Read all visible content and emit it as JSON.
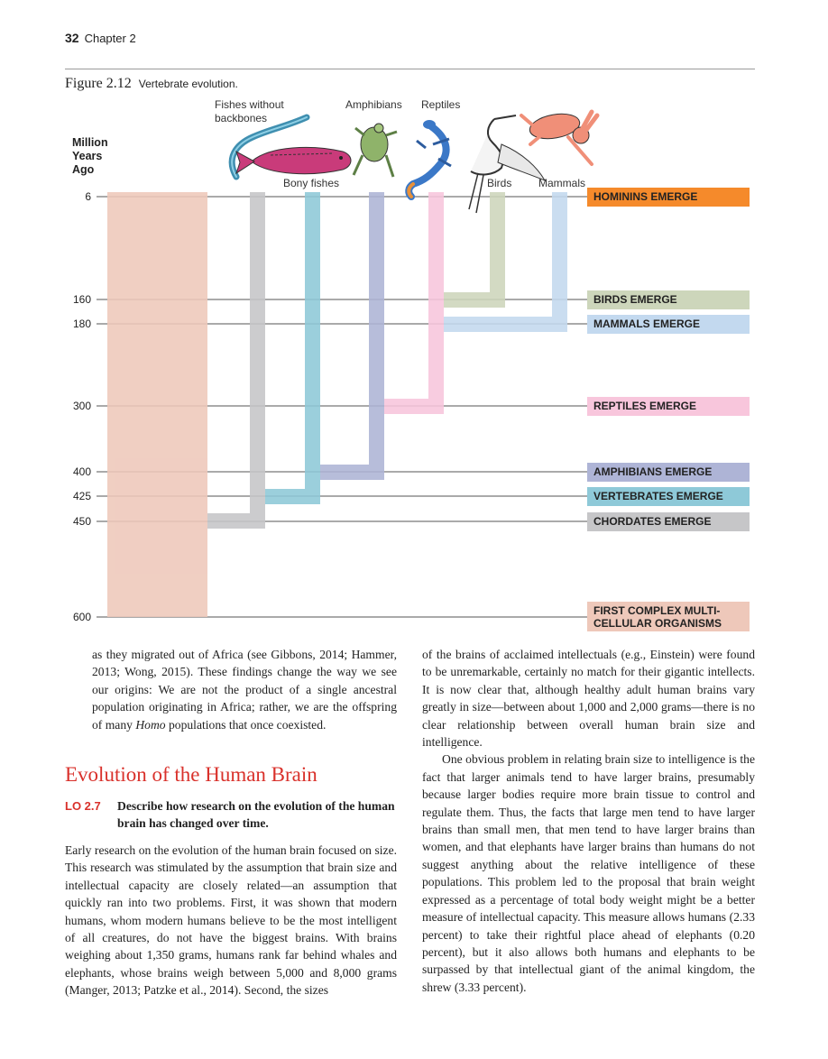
{
  "header": {
    "page_number": "32",
    "chapter": "Chapter 2"
  },
  "figure": {
    "number": "Figure 2.12",
    "caption": "Vertebrate evolution.",
    "axis_label": [
      "Million",
      "Years",
      "Ago"
    ],
    "ticks": [
      "6",
      "160",
      "180",
      "300",
      "400",
      "425",
      "450",
      "600"
    ],
    "groups": [
      "Fishes without",
      "backbones",
      "Bony fishes",
      "Amphibians",
      "Reptiles",
      "Birds",
      "Mammals"
    ],
    "events": [
      {
        "label": "HOMININS EMERGE",
        "color": "#f58a2b"
      },
      {
        "label": "BIRDS EMERGE",
        "color": "#cdd6bb"
      },
      {
        "label": "MAMMALS EMERGE",
        "color": "#c3d9ef"
      },
      {
        "label": "REPTILES EMERGE",
        "color": "#f8c6dc"
      },
      {
        "label": "AMPHIBIANS EMERGE",
        "color": "#aeb4d6"
      },
      {
        "label": "VERTEBRATES EMERGE",
        "color": "#8ec9d8"
      },
      {
        "label": "CHORDATES EMERGE",
        "color": "#c6c6c8"
      },
      {
        "label": "FIRST COMPLEX MULTI-",
        "label2": "CELLULAR ORGANISMS",
        "color": "#eec8ba"
      }
    ]
  },
  "left_continuation": "as they migrated out of Africa (see Gibbons, 2014; Hammer, 2013; Wong, 2015). These findings change the way we see our origins: We are not the product of a single ancestral population originating in Africa; rather, we are the offspring of many",
  "left_continuation_italic": "Homo",
  "left_continuation_end": "populations that once coexisted.",
  "section_heading": "Evolution of the Human Brain",
  "lo": {
    "tag": "LO 2.7",
    "text": "Describe how research on the evolution of the human brain has changed over time."
  },
  "left_para": "Early research on the evolution of the human brain focused on size. This research was stimulated by the assumption that brain size and intellectual capacity are closely related—an assumption that quickly ran into two problems. First, it was shown that modern humans, whom modern humans believe to be the most intelligent of all creatures, do not have the biggest brains. With brains weighing about 1,350 grams, humans rank far behind whales and elephants, whose brains weigh between 5,000 and 8,000 grams (Manger, 2013; Patzke et al., 2014). Second, the sizes",
  "right_para1": "of the brains of acclaimed intellectuals (e.g., Einstein) were found to be unremarkable, certainly no match for their gigantic intellects. It is now clear that, although healthy adult human brains vary greatly in size—between about 1,000 and 2,000 grams—there is no clear relationship between overall human brain size and intelligence.",
  "right_para2": "One obvious problem in relating brain size to intelligence is the fact that larger animals tend to have larger brains, presumably because larger bodies require more brain tissue to control and regulate them. Thus, the facts that large men tend to have larger brains than small men, that men tend to have larger brains than women, and that elephants have larger brains than humans do not suggest anything about the relative intelligence of these populations. This problem led to the proposal that brain weight expressed as a percentage of total body weight might be a better measure of intellectual capacity. This measure allows humans (2.33 percent) to take their rightful place ahead of elephants (0.20 percent), but it also allows both humans and elephants to be surpassed by that intellectual giant of the animal kingdom, the shrew (3.33 percent)."
}
